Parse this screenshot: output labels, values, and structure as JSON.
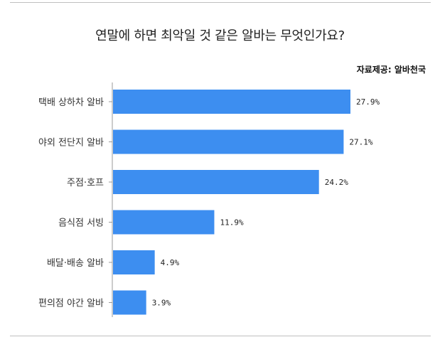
{
  "chart_data": {
    "type": "bar",
    "orientation": "horizontal",
    "title": "연말에 하면 최악일 것 같은 알바는 무엇인가요?",
    "source": "자료제공: 알바천국",
    "categories": [
      "택배 상하차 알바",
      "야외 전단지 알바",
      "주점·호프",
      "음식점 서빙",
      "배달·배송 알바",
      "편의점 야간 알바"
    ],
    "values": [
      27.9,
      27.1,
      24.2,
      11.9,
      4.9,
      3.9
    ],
    "value_labels": [
      "27.9%",
      "27.1%",
      "24.2%",
      "11.9%",
      "4.9%",
      "3.9%"
    ],
    "bar_color": "#3d8ef0",
    "axis_color": "#999999",
    "xlim": [
      0,
      28
    ]
  }
}
